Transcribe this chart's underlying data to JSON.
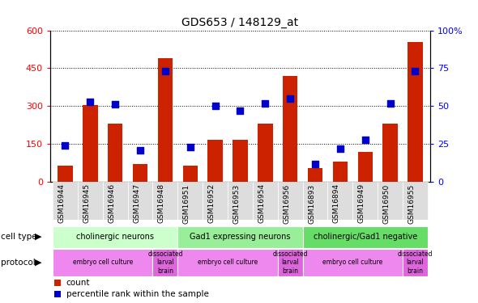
{
  "title": "GDS653 / 148129_at",
  "samples": [
    "GSM16944",
    "GSM16945",
    "GSM16946",
    "GSM16947",
    "GSM16948",
    "GSM16951",
    "GSM16952",
    "GSM16953",
    "GSM16954",
    "GSM16956",
    "GSM16893",
    "GSM16894",
    "GSM16949",
    "GSM16950",
    "GSM16955"
  ],
  "counts": [
    65,
    305,
    230,
    70,
    490,
    65,
    165,
    165,
    230,
    420,
    55,
    80,
    120,
    230,
    555
  ],
  "percentile_ranks": [
    24,
    53,
    51,
    21,
    73,
    23,
    50,
    47,
    52,
    55,
    12,
    22,
    28,
    52,
    73
  ],
  "cell_types": [
    {
      "label": "cholinergic neurons",
      "start": 0,
      "end": 5,
      "color": "#ccffcc"
    },
    {
      "label": "Gad1 expressing neurons",
      "start": 5,
      "end": 10,
      "color": "#99ee99"
    },
    {
      "label": "cholinergic/Gad1 negative",
      "start": 10,
      "end": 15,
      "color": "#66dd66"
    }
  ],
  "protocols": [
    {
      "label": "embryo cell culture",
      "start": 0,
      "end": 4,
      "color": "#ee88ee"
    },
    {
      "label": "dissociated\nlarval\nbrain",
      "start": 4,
      "end": 5,
      "color": "#dd66dd"
    },
    {
      "label": "embryo cell culture",
      "start": 5,
      "end": 9,
      "color": "#ee88ee"
    },
    {
      "label": "dissociated\nlarval\nbrain",
      "start": 9,
      "end": 10,
      "color": "#dd66dd"
    },
    {
      "label": "embryo cell culture",
      "start": 10,
      "end": 14,
      "color": "#ee88ee"
    },
    {
      "label": "dissociated\nlarval\nbrain",
      "start": 14,
      "end": 15,
      "color": "#dd66dd"
    }
  ],
  "ylim_left": [
    0,
    600
  ],
  "ylim_right": [
    0,
    100
  ],
  "yticks_left": [
    0,
    150,
    300,
    450,
    600
  ],
  "yticks_right": [
    0,
    25,
    50,
    75,
    100
  ],
  "bar_color": "#cc2200",
  "dot_color": "#0000cc",
  "bar_width": 0.6,
  "dot_size": 28,
  "tick_bg_color": "#dddddd"
}
